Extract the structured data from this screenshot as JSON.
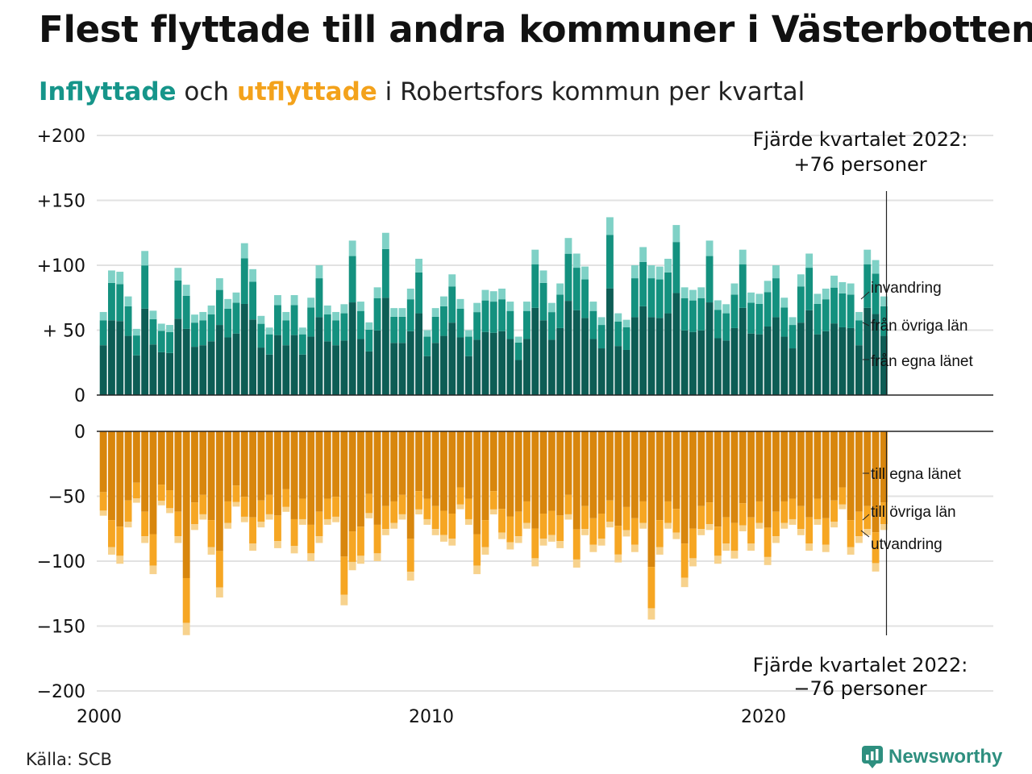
{
  "title": "Flest flyttade till andra kommuner i Västerbotten",
  "subtitle": {
    "in_word": "Inflyttade",
    "and_word": "och",
    "out_word": "utflyttade",
    "rest": "i Robertsfors kommun per kvartal"
  },
  "source": "Källa: SCB",
  "brand": "Newsworthy",
  "colors": {
    "in_own": "#0d5d55",
    "in_other": "#14917f",
    "in_abroad": "#7fd1c6",
    "out_own": "#d8860d",
    "out_other": "#f6a623",
    "out_abroad": "#f7d28d",
    "grid": "#e2e2e2",
    "axis": "#222222"
  },
  "chart_data": {
    "type": "bar",
    "stacked": true,
    "x_start": 2000,
    "quarters_per_year": 4,
    "x_ticks": [
      "2000",
      "2010",
      "2020"
    ],
    "y_ticks_top": [
      "+200",
      "+150",
      "+100",
      "+ 50",
      "0"
    ],
    "y_ticks_bottom": [
      "0",
      "−50",
      "−100",
      "−150",
      "−200"
    ],
    "ylim_top": [
      0,
      200
    ],
    "ylim_bottom": [
      -200,
      0
    ],
    "annotation_top": [
      "Fjärde kvartalet 2022:",
      "+76 personer"
    ],
    "annotation_bottom": [
      "Fjärde kvartalet 2022:",
      "−76 personer"
    ],
    "labels_in": [
      "invandring",
      "från övriga län",
      "från egna länet"
    ],
    "labels_out": [
      "till egna länet",
      "till övriga län",
      "utvandring"
    ],
    "inflow_totals": [
      64,
      96,
      95,
      76,
      51,
      111,
      65,
      55,
      54,
      98,
      85,
      62,
      64,
      69,
      90,
      74,
      79,
      117,
      97,
      61,
      52,
      77,
      64,
      77,
      52,
      75,
      100,
      69,
      64,
      70,
      119,
      72,
      56,
      83,
      125,
      67,
      67,
      82,
      105,
      50,
      67,
      76,
      93,
      74,
      50,
      71,
      81,
      80,
      82,
      72,
      45,
      72,
      112,
      96,
      71,
      86,
      121,
      109,
      99,
      72,
      60,
      137,
      63,
      58,
      100,
      114,
      100,
      99,
      105,
      131,
      83,
      81,
      83,
      119,
      73,
      70,
      86,
      112,
      79,
      78,
      88,
      100,
      75,
      60,
      93,
      109,
      78,
      82,
      92,
      87,
      86,
      64,
      112,
      104,
      76
    ],
    "outflow_totals": [
      -65,
      -95,
      -102,
      -74,
      -55,
      -86,
      -110,
      -57,
      -63,
      -86,
      -157,
      -76,
      -68,
      -95,
      -128,
      -75,
      -58,
      -70,
      -92,
      -74,
      -68,
      -90,
      -62,
      -94,
      -72,
      -100,
      -86,
      -72,
      -70,
      -134,
      -107,
      -102,
      -67,
      -100,
      -80,
      -75,
      -68,
      -115,
      -64,
      -72,
      -80,
      -85,
      -88,
      -60,
      -72,
      -110,
      -95,
      -64,
      -83,
      -91,
      -86,
      -75,
      -104,
      -88,
      -85,
      -90,
      -68,
      -105,
      -80,
      -93,
      -88,
      -74,
      -101,
      -81,
      -93,
      -75,
      -145,
      -95,
      -75,
      -83,
      -120,
      -104,
      -80,
      -76,
      -102,
      -92,
      -98,
      -77,
      -92,
      -75,
      -103,
      -86,
      -75,
      -72,
      -80,
      -92,
      -72,
      -93,
      -74,
      -60,
      -95,
      -86,
      -80,
      -108,
      -76
    ]
  }
}
